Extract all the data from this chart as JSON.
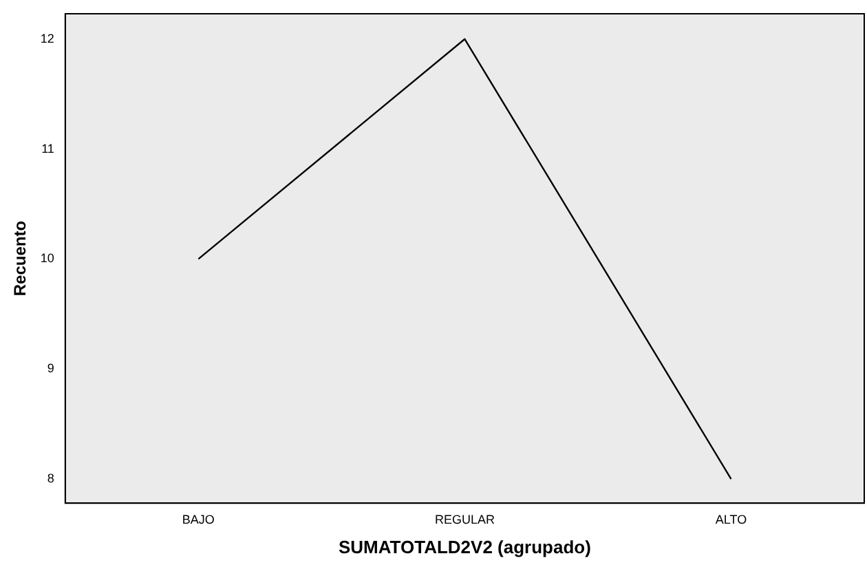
{
  "chart_data": {
    "type": "line",
    "xlabel": "SUMATOTALD2V2 (agrupado)",
    "ylabel": "Recuento",
    "categories": [
      "BAJO",
      "REGULAR",
      "ALTO"
    ],
    "series": [
      {
        "color": "#000000",
        "values": [
          10,
          12,
          8
        ]
      }
    ],
    "ylim": [
      7.78,
      12.23
    ],
    "yticks": [
      8,
      9,
      10,
      11,
      12
    ],
    "grid": false,
    "legend": false,
    "marker": "none",
    "line_style": "solid"
  }
}
